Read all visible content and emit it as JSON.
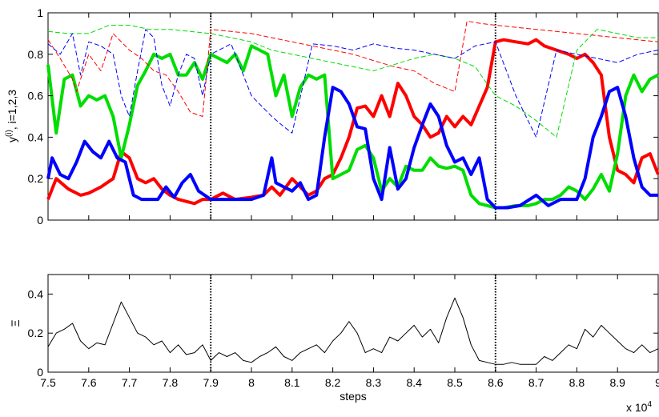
{
  "chart_data": [
    {
      "type": "line",
      "ylabel_main": "y",
      "ylabel_sup": "(i)",
      "ylabel_rest": ", i=1,2,3",
      "xlim": [
        7.5,
        9.0
      ],
      "ylim": [
        0,
        1
      ],
      "yticks": [
        "0",
        "0.2",
        "0.4",
        "0.6",
        "0.8",
        "1"
      ],
      "ytick_values": [
        0,
        0.2,
        0.4,
        0.6,
        0.8,
        1
      ],
      "vlines": [
        7.9,
        8.6
      ],
      "series": [
        {
          "color": "#ff0000",
          "style": "solid",
          "x": [
            7.5,
            7.52,
            7.55,
            7.58,
            7.6,
            7.63,
            7.66,
            7.68,
            7.7,
            7.72,
            7.74,
            7.76,
            7.78,
            7.8,
            7.82,
            7.84,
            7.86,
            7.88,
            7.9,
            7.93,
            7.96,
            8.0,
            8.03,
            8.05,
            8.07,
            8.1,
            8.12,
            8.14,
            8.16,
            8.18,
            8.2,
            8.22,
            8.24,
            8.26,
            8.28,
            8.3,
            8.32,
            8.34,
            8.36,
            8.38,
            8.4,
            8.42,
            8.44,
            8.46,
            8.48,
            8.5,
            8.52,
            8.54,
            8.56,
            8.58,
            8.6,
            8.62,
            8.65,
            8.68,
            8.7,
            8.72,
            8.75,
            8.78,
            8.8,
            8.82,
            8.84,
            8.86,
            8.88,
            8.9,
            8.92,
            8.94,
            8.96,
            8.98,
            9.0
          ],
          "y": [
            0.1,
            0.2,
            0.15,
            0.12,
            0.13,
            0.16,
            0.2,
            0.33,
            0.3,
            0.2,
            0.18,
            0.2,
            0.15,
            0.12,
            0.1,
            0.09,
            0.08,
            0.1,
            0.1,
            0.13,
            0.1,
            0.11,
            0.12,
            0.16,
            0.12,
            0.2,
            0.16,
            0.12,
            0.14,
            0.2,
            0.22,
            0.3,
            0.4,
            0.54,
            0.55,
            0.5,
            0.6,
            0.5,
            0.66,
            0.6,
            0.5,
            0.46,
            0.4,
            0.42,
            0.5,
            0.45,
            0.5,
            0.46,
            0.55,
            0.64,
            0.86,
            0.87,
            0.86,
            0.85,
            0.87,
            0.84,
            0.82,
            0.8,
            0.78,
            0.8,
            0.76,
            0.7,
            0.4,
            0.24,
            0.22,
            0.18,
            0.3,
            0.32,
            0.22
          ]
        },
        {
          "color": "#00dd00",
          "style": "solid",
          "x": [
            7.5,
            7.52,
            7.54,
            7.56,
            7.58,
            7.6,
            7.62,
            7.64,
            7.66,
            7.68,
            7.7,
            7.72,
            7.74,
            7.76,
            7.78,
            7.8,
            7.82,
            7.84,
            7.86,
            7.88,
            7.9,
            7.92,
            7.94,
            7.96,
            7.98,
            8.0,
            8.02,
            8.04,
            8.06,
            8.08,
            8.1,
            8.12,
            8.14,
            8.16,
            8.18,
            8.2,
            8.22,
            8.24,
            8.26,
            8.28,
            8.3,
            8.32,
            8.34,
            8.36,
            8.38,
            8.4,
            8.42,
            8.44,
            8.46,
            8.48,
            8.5,
            8.52,
            8.54,
            8.56,
            8.58,
            8.6,
            8.62,
            8.65,
            8.68,
            8.7,
            8.72,
            8.74,
            8.76,
            8.78,
            8.8,
            8.82,
            8.84,
            8.86,
            8.88,
            8.9,
            8.92,
            8.94,
            8.96,
            8.98,
            9.0
          ],
          "y": [
            0.75,
            0.42,
            0.68,
            0.7,
            0.55,
            0.6,
            0.58,
            0.6,
            0.5,
            0.3,
            0.46,
            0.65,
            0.72,
            0.8,
            0.78,
            0.8,
            0.7,
            0.7,
            0.76,
            0.68,
            0.8,
            0.78,
            0.76,
            0.8,
            0.72,
            0.84,
            0.82,
            0.8,
            0.6,
            0.7,
            0.5,
            0.64,
            0.7,
            0.68,
            0.7,
            0.2,
            0.22,
            0.24,
            0.34,
            0.36,
            0.3,
            0.14,
            0.2,
            0.16,
            0.26,
            0.24,
            0.24,
            0.3,
            0.26,
            0.25,
            0.26,
            0.24,
            0.12,
            0.08,
            0.07,
            0.06,
            0.06,
            0.07,
            0.07,
            0.08,
            0.1,
            0.1,
            0.12,
            0.16,
            0.14,
            0.1,
            0.15,
            0.22,
            0.14,
            0.32,
            0.6,
            0.7,
            0.62,
            0.68,
            0.7
          ]
        },
        {
          "color": "#0000ff",
          "style": "solid",
          "x": [
            7.5,
            7.51,
            7.53,
            7.55,
            7.57,
            7.59,
            7.61,
            7.63,
            7.65,
            7.67,
            7.69,
            7.71,
            7.73,
            7.75,
            7.77,
            7.79,
            7.81,
            7.83,
            7.85,
            7.87,
            7.9,
            7.93,
            7.96,
            8.0,
            8.03,
            8.05,
            8.06,
            8.08,
            8.1,
            8.12,
            8.14,
            8.16,
            8.18,
            8.2,
            8.22,
            8.24,
            8.26,
            8.28,
            8.3,
            8.32,
            8.34,
            8.36,
            8.38,
            8.4,
            8.42,
            8.44,
            8.46,
            8.48,
            8.5,
            8.52,
            8.54,
            8.56,
            8.58,
            8.6,
            8.63,
            8.66,
            8.7,
            8.73,
            8.76,
            8.8,
            8.82,
            8.84,
            8.86,
            8.88,
            8.9,
            8.92,
            8.94,
            8.96,
            8.98,
            9.0
          ],
          "y": [
            0.2,
            0.3,
            0.22,
            0.2,
            0.28,
            0.38,
            0.33,
            0.3,
            0.38,
            0.3,
            0.28,
            0.12,
            0.1,
            0.1,
            0.1,
            0.16,
            0.11,
            0.18,
            0.22,
            0.14,
            0.1,
            0.1,
            0.1,
            0.1,
            0.12,
            0.3,
            0.18,
            0.16,
            0.14,
            0.18,
            0.1,
            0.12,
            0.4,
            0.64,
            0.62,
            0.56,
            0.45,
            0.44,
            0.2,
            0.1,
            0.35,
            0.15,
            0.2,
            0.35,
            0.46,
            0.56,
            0.5,
            0.36,
            0.28,
            0.3,
            0.22,
            0.3,
            0.1,
            0.06,
            0.06,
            0.07,
            0.12,
            0.07,
            0.1,
            0.1,
            0.2,
            0.4,
            0.5,
            0.62,
            0.64,
            0.5,
            0.3,
            0.16,
            0.12,
            0.12
          ]
        },
        {
          "color": "#ff0000",
          "style": "dashed",
          "x": [
            7.5,
            7.53,
            7.56,
            7.57,
            7.6,
            7.63,
            7.66,
            7.7,
            7.73,
            7.76,
            7.79,
            7.82,
            7.85,
            7.88,
            7.9,
            7.95,
            8.0,
            8.05,
            8.1,
            8.15,
            8.2,
            8.25,
            8.3,
            8.35,
            8.4,
            8.45,
            8.5,
            8.53,
            8.56,
            8.6,
            8.65,
            8.7,
            8.75,
            8.8,
            8.85,
            8.9,
            8.95,
            9.0
          ],
          "y": [
            0.87,
            0.78,
            0.68,
            0.62,
            0.8,
            0.72,
            0.9,
            0.82,
            0.78,
            0.72,
            0.7,
            0.62,
            0.52,
            0.5,
            0.92,
            0.91,
            0.9,
            0.88,
            0.86,
            0.84,
            0.82,
            0.8,
            0.77,
            0.74,
            0.72,
            0.66,
            0.62,
            0.96,
            0.95,
            0.94,
            0.93,
            0.92,
            0.91,
            0.9,
            0.89,
            0.88,
            0.87,
            0.86
          ]
        },
        {
          "color": "#00dd00",
          "style": "dashed",
          "x": [
            7.5,
            7.55,
            7.6,
            7.65,
            7.7,
            7.75,
            7.8,
            7.85,
            7.9,
            7.95,
            8.0,
            8.05,
            8.1,
            8.15,
            8.2,
            8.25,
            8.3,
            8.35,
            8.4,
            8.45,
            8.5,
            8.55,
            8.6,
            8.65,
            8.7,
            8.75,
            8.8,
            8.85,
            8.9,
            8.95,
            9.0
          ],
          "y": [
            0.91,
            0.9,
            0.9,
            0.94,
            0.94,
            0.92,
            0.92,
            0.91,
            0.9,
            0.88,
            0.86,
            0.82,
            0.8,
            0.78,
            0.76,
            0.74,
            0.72,
            0.75,
            0.78,
            0.8,
            0.78,
            0.74,
            0.6,
            0.55,
            0.48,
            0.4,
            0.82,
            0.92,
            0.9,
            0.88,
            0.88
          ]
        },
        {
          "color": "#0000ff",
          "style": "dashed",
          "x": [
            7.5,
            7.53,
            7.56,
            7.58,
            7.6,
            7.63,
            7.66,
            7.68,
            7.7,
            7.72,
            7.74,
            7.76,
            7.78,
            7.8,
            7.82,
            7.84,
            7.86,
            7.88,
            7.9,
            7.95,
            8.0,
            8.05,
            8.08,
            8.1,
            8.15,
            8.2,
            8.25,
            8.3,
            8.35,
            8.4,
            8.45,
            8.5,
            8.55,
            8.6,
            8.65,
            8.7,
            8.75,
            8.8,
            8.85,
            8.9,
            8.95,
            9.0
          ],
          "y": [
            0.85,
            0.8,
            0.9,
            0.7,
            0.86,
            0.84,
            0.8,
            0.6,
            0.5,
            0.72,
            0.92,
            0.88,
            0.65,
            0.55,
            0.7,
            0.8,
            0.78,
            0.6,
            0.8,
            0.85,
            0.6,
            0.5,
            0.45,
            0.42,
            0.85,
            0.84,
            0.82,
            0.85,
            0.83,
            0.82,
            0.8,
            0.78,
            0.84,
            0.86,
            0.6,
            0.4,
            0.82,
            0.8,
            0.78,
            0.76,
            0.8,
            0.82
          ]
        }
      ]
    },
    {
      "type": "line",
      "ylabel": "Ξ",
      "xlabel": "steps",
      "x_exponent_base": "x 10",
      "x_exponent_power": "4",
      "xlim": [
        7.5,
        9.0
      ],
      "ylim": [
        0,
        0.5
      ],
      "yticks": [
        "0",
        "0.2",
        "0.4"
      ],
      "ytick_values": [
        0,
        0.2,
        0.4
      ],
      "xticks": [
        "7.5",
        "7.6",
        "7.7",
        "7.8",
        "7.9",
        "8",
        "8.1",
        "8.2",
        "8.3",
        "8.4",
        "8.5",
        "8.6",
        "8.7",
        "8.8",
        "8.9",
        "9"
      ],
      "xtick_values": [
        7.5,
        7.6,
        7.7,
        7.8,
        7.9,
        8.0,
        8.1,
        8.2,
        8.3,
        8.4,
        8.5,
        8.6,
        8.7,
        8.8,
        8.9,
        9.0
      ],
      "vlines": [
        7.9,
        8.6
      ],
      "series": [
        {
          "color": "#000000",
          "style": "solid",
          "x": [
            7.5,
            7.52,
            7.54,
            7.56,
            7.58,
            7.6,
            7.62,
            7.64,
            7.66,
            7.68,
            7.7,
            7.72,
            7.74,
            7.76,
            7.78,
            7.8,
            7.82,
            7.84,
            7.86,
            7.88,
            7.9,
            7.92,
            7.94,
            7.96,
            7.98,
            8.0,
            8.02,
            8.04,
            8.06,
            8.08,
            8.1,
            8.12,
            8.14,
            8.16,
            8.18,
            8.2,
            8.22,
            8.24,
            8.26,
            8.28,
            8.3,
            8.32,
            8.34,
            8.36,
            8.38,
            8.4,
            8.42,
            8.44,
            8.46,
            8.48,
            8.5,
            8.52,
            8.54,
            8.56,
            8.58,
            8.6,
            8.62,
            8.64,
            8.66,
            8.68,
            8.7,
            8.72,
            8.74,
            8.76,
            8.78,
            8.8,
            8.82,
            8.84,
            8.86,
            8.88,
            8.9,
            8.92,
            8.94,
            8.96,
            8.98,
            9.0
          ],
          "y": [
            0.13,
            0.2,
            0.22,
            0.25,
            0.16,
            0.12,
            0.15,
            0.14,
            0.25,
            0.36,
            0.28,
            0.2,
            0.18,
            0.14,
            0.16,
            0.1,
            0.14,
            0.09,
            0.1,
            0.14,
            0.06,
            0.1,
            0.08,
            0.1,
            0.06,
            0.05,
            0.08,
            0.1,
            0.13,
            0.08,
            0.06,
            0.1,
            0.12,
            0.14,
            0.1,
            0.16,
            0.2,
            0.26,
            0.2,
            0.1,
            0.12,
            0.1,
            0.18,
            0.16,
            0.2,
            0.24,
            0.18,
            0.22,
            0.15,
            0.28,
            0.38,
            0.28,
            0.14,
            0.06,
            0.05,
            0.04,
            0.04,
            0.05,
            0.04,
            0.04,
            0.04,
            0.08,
            0.06,
            0.1,
            0.14,
            0.12,
            0.22,
            0.18,
            0.24,
            0.2,
            0.16,
            0.12,
            0.1,
            0.14,
            0.1,
            0.12
          ]
        }
      ]
    }
  ]
}
